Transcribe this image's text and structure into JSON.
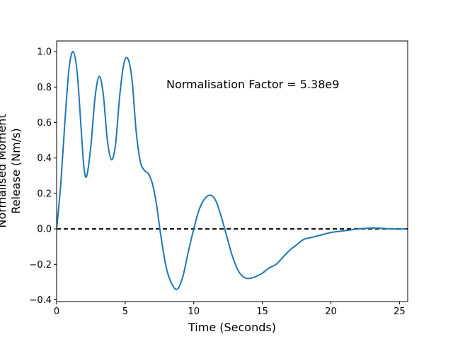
{
  "chart_data": {
    "type": "line",
    "title": "",
    "xlabel": "Time (Seconds)",
    "ylabel_lines": [
      "Normalised Moment",
      "Release (Nm/s)"
    ],
    "xlim": [
      0,
      25.6
    ],
    "ylim": [
      -0.41,
      1.06
    ],
    "xticks": [
      0,
      5,
      10,
      15,
      20,
      25
    ],
    "yticks": [
      -0.4,
      -0.2,
      0.0,
      0.2,
      0.4,
      0.6,
      0.8,
      1.0
    ],
    "xtick_labels": [
      "0",
      "5",
      "10",
      "15",
      "20",
      "25"
    ],
    "ytick_labels": [
      "−0.4",
      "−0.2",
      "0.0",
      "0.2",
      "0.4",
      "0.6",
      "0.8",
      "1.0"
    ],
    "grid": false,
    "annotation": "Normalisation Factor = 5.38e9",
    "series": [
      {
        "color": "#1f77b4",
        "x": [
          0,
          0.3,
          0.6,
          0.9,
          1.2,
          1.5,
          1.8,
          2.0,
          2.2,
          2.5,
          2.8,
          3.1,
          3.4,
          3.7,
          4.0,
          4.3,
          4.6,
          4.9,
          5.2,
          5.5,
          5.8,
          6.1,
          6.4,
          6.7,
          7.0,
          7.3,
          7.6,
          8.0,
          8.4,
          8.8,
          9.2,
          9.6,
          10.0,
          10.4,
          10.8,
          11.2,
          11.6,
          12.0,
          12.4,
          12.8,
          13.2,
          13.6,
          14.0,
          14.5,
          15.0,
          15.5,
          16.0,
          16.5,
          17.0,
          17.5,
          18.0,
          18.5,
          19.0,
          19.5,
          20.0,
          20.5,
          21.0,
          21.5,
          22.0,
          22.5,
          23.0,
          23.5,
          24.0,
          24.5,
          25.0,
          25.5
        ],
        "y": [
          0.0,
          0.25,
          0.6,
          0.9,
          1.0,
          0.88,
          0.55,
          0.34,
          0.3,
          0.47,
          0.74,
          0.86,
          0.76,
          0.5,
          0.39,
          0.48,
          0.75,
          0.93,
          0.96,
          0.84,
          0.55,
          0.38,
          0.33,
          0.31,
          0.25,
          0.13,
          -0.04,
          -0.22,
          -0.31,
          -0.34,
          -0.27,
          -0.13,
          0.0,
          0.11,
          0.17,
          0.19,
          0.16,
          0.07,
          -0.04,
          -0.15,
          -0.23,
          -0.27,
          -0.28,
          -0.27,
          -0.25,
          -0.22,
          -0.2,
          -0.16,
          -0.12,
          -0.09,
          -0.06,
          -0.05,
          -0.04,
          -0.03,
          -0.02,
          -0.015,
          -0.01,
          -0.005,
          0.0,
          0.003,
          0.005,
          0.004,
          0.002,
          0.0,
          -0.001,
          0.0
        ]
      }
    ],
    "reference_line": {
      "y": 0,
      "style": "dashed",
      "color": "#000000"
    }
  }
}
